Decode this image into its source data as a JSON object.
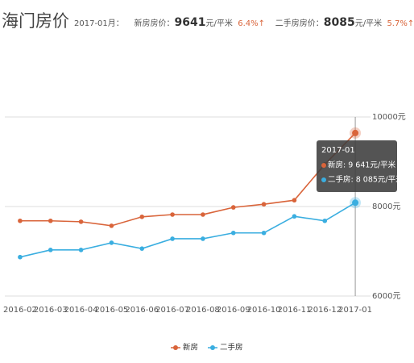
{
  "header": {
    "title": "海门房价",
    "month": "2017-01月：",
    "new_label": "新房房价：",
    "new_price": 9641,
    "new_unit": "元/平米",
    "new_change": "6.4%↑",
    "used_label": "二手房房价：",
    "used_price": 8085,
    "used_unit": "元/平米",
    "used_change": "5.7%↑"
  },
  "chart_data": {
    "type": "line",
    "categories": [
      "2016-02",
      "2016-03",
      "2016-04",
      "2016-05",
      "2016-06",
      "2016-07",
      "2016-08",
      "2016-09",
      "2016-10",
      "2016-11",
      "2016-12",
      "2017-01"
    ],
    "series": [
      {
        "name": "新房",
        "color": "#d9643a",
        "values": [
          7680,
          7680,
          7660,
          7570,
          7770,
          7820,
          7820,
          7980,
          8050,
          8140,
          8940,
          9641
        ]
      },
      {
        "name": "二手房",
        "color": "#3aaee0",
        "values": [
          6870,
          7030,
          7030,
          7190,
          7060,
          7280,
          7280,
          7410,
          7410,
          7780,
          7680,
          8085
        ]
      }
    ],
    "ylim": [
      6000,
      10000
    ],
    "yticks": [
      {
        "value": 6000,
        "label": "6000元"
      },
      {
        "value": 8000,
        "label": "8000元"
      },
      {
        "value": 10000,
        "label": "10000元"
      }
    ],
    "grid": true,
    "legend": "bottom",
    "tooltip": {
      "title": "2017-01",
      "lines": [
        "新房: 9 641元/平米",
        "二手房: 8 085元/平米"
      ]
    }
  }
}
